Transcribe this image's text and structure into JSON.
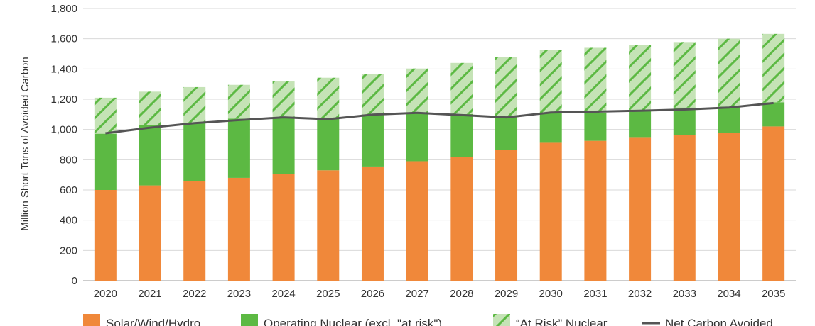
{
  "chart_data": {
    "type": "bar",
    "stacked": true,
    "ylabel": "Million Short Tons of Avoided Carbon",
    "ylim": [
      0,
      1800
    ],
    "ytick_step": 200,
    "grid": true,
    "legend_position": "bottom",
    "categories": [
      "2020",
      "2021",
      "2022",
      "2023",
      "2024",
      "2025",
      "2026",
      "2027",
      "2028",
      "2029",
      "2030",
      "2031",
      "2032",
      "2033",
      "2034",
      "2035"
    ],
    "series": [
      {
        "name": "Solar/Wind/Hydro",
        "kind": "bar",
        "color": "#F0883A",
        "values": [
          600,
          630,
          660,
          680,
          705,
          730,
          755,
          790,
          820,
          865,
          912,
          925,
          945,
          962,
          975,
          1020
        ]
      },
      {
        "name": "Operating Nuclear (excl. \"at risk\")",
        "kind": "bar",
        "color": "#5CB943",
        "values": [
          372,
          400,
          382,
          392,
          375,
          340,
          345,
          318,
          282,
          222,
          196,
          183,
          180,
          183,
          177,
          160
        ]
      },
      {
        "name": "“At Risk” Nuclear",
        "kind": "bar-hatched",
        "color": "#C5E3B6",
        "hatch_color": "#5CB943",
        "values": [
          238,
          220,
          238,
          223,
          237,
          272,
          265,
          295,
          338,
          393,
          420,
          432,
          433,
          433,
          448,
          452
        ]
      },
      {
        "name": "Net Carbon Avoided",
        "kind": "line",
        "color": "#555555",
        "values": [
          975,
          1012,
          1042,
          1062,
          1080,
          1068,
          1098,
          1110,
          1095,
          1080,
          1112,
          1118,
          1124,
          1132,
          1145,
          1175
        ]
      }
    ]
  }
}
